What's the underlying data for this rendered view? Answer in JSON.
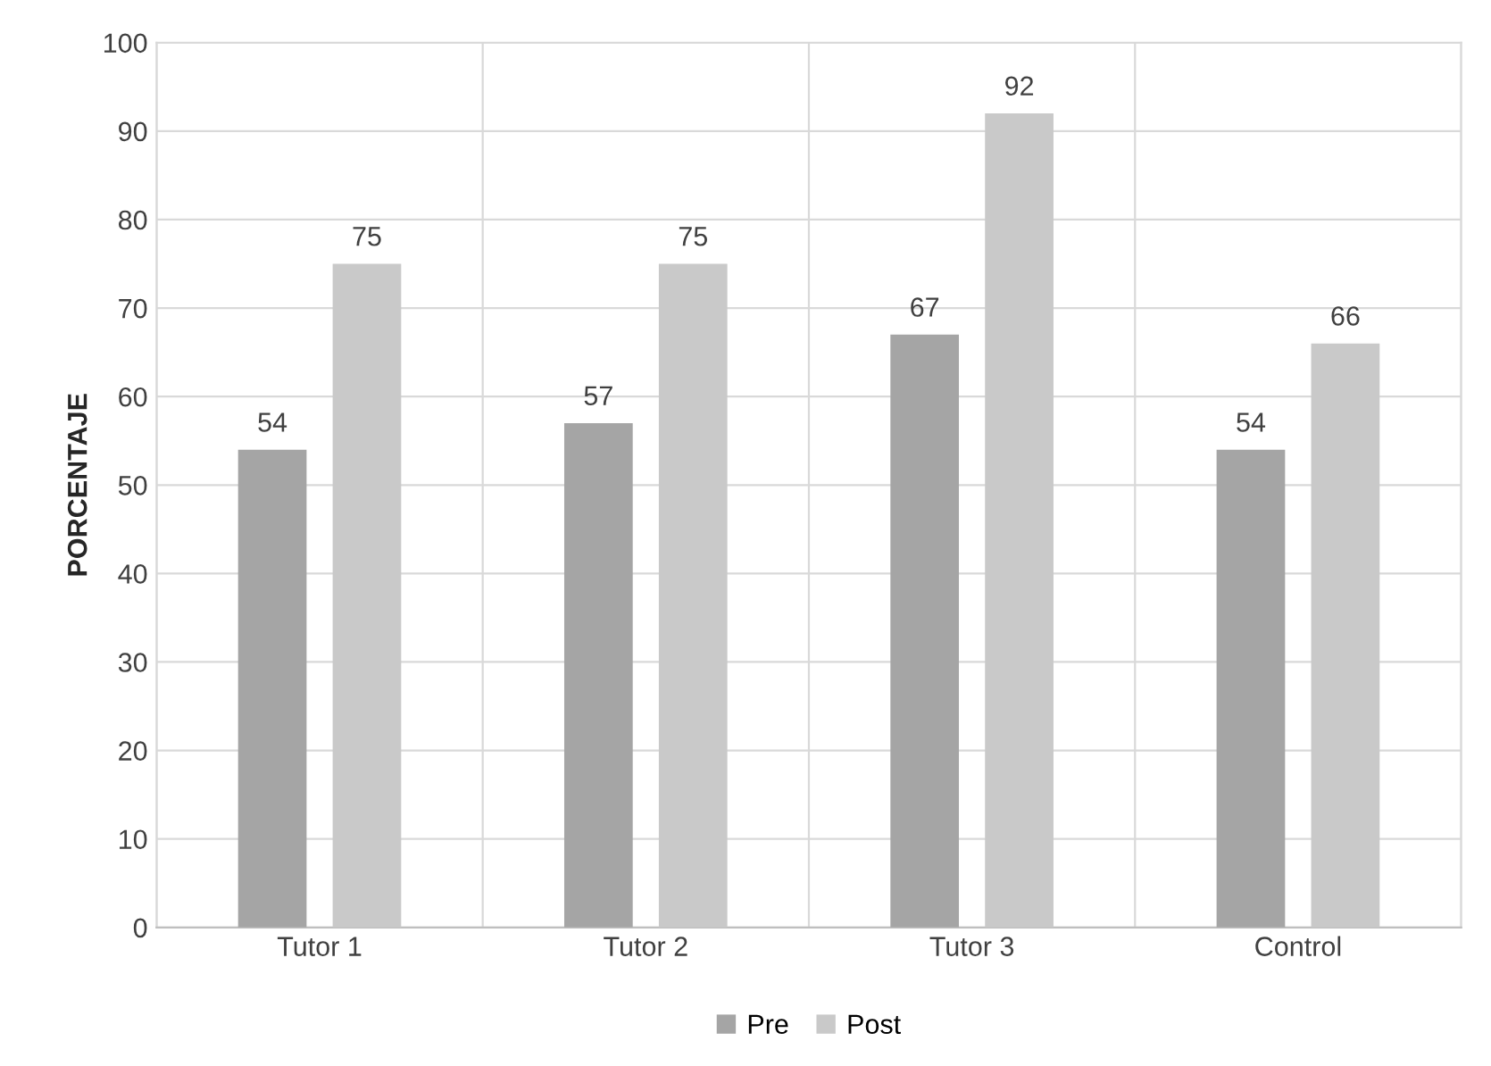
{
  "chart_data": {
    "type": "bar",
    "ylabel": "PORCENTAJE",
    "categories": [
      "Tutor 1",
      "Tutor 2",
      "Tutor 3",
      "Control"
    ],
    "series": [
      {
        "name": "Pre",
        "color": "#a5a5a5",
        "values": [
          54,
          57,
          67,
          54
        ]
      },
      {
        "name": "Post",
        "color": "#c9c9c9",
        "values": [
          75,
          75,
          92,
          66
        ]
      }
    ],
    "ylim": [
      0,
      100
    ],
    "yticks": [
      0,
      10,
      20,
      30,
      40,
      50,
      60,
      70,
      80,
      90,
      100
    ],
    "grid": true,
    "legend": "bottom",
    "data_labels": true
  }
}
